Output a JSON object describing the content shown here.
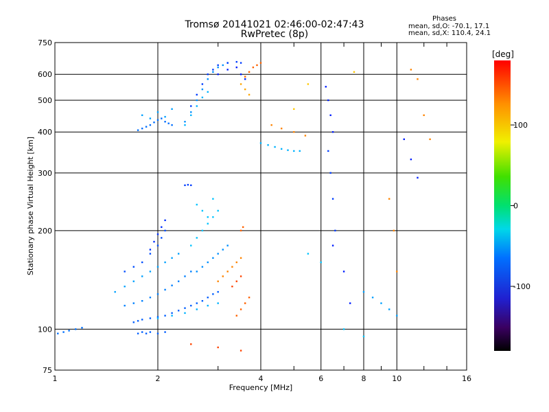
{
  "header": {
    "title_line1": "Tromsø 20141021 02:46:00-02:47:43",
    "title_line2": "RwPretec (8p)"
  },
  "stats": {
    "heading": "Phases",
    "o_line": "mean, sd,O: -70.1, 17.1",
    "x_line": "mean, sd,X: 110.4, 24.1"
  },
  "chart_data": {
    "type": "scatter",
    "title": "Tromsø 20141021 02:46:00-02:47:43",
    "subtitle": "RwPretec (8p)",
    "xlabel": "Frequency [MHz]",
    "ylabel": "Stationary phase Virtual Height [km]",
    "x_scale": "log",
    "y_scale": "log",
    "xlim": [
      1,
      16
    ],
    "ylim": [
      75,
      750
    ],
    "x_ticks": [
      1,
      2,
      4,
      6,
      8,
      10,
      16
    ],
    "x_tick_labels": [
      "1",
      "2",
      "4",
      "6",
      "8",
      "10",
      "16"
    ],
    "y_ticks": [
      75,
      100,
      200,
      300,
      400,
      500,
      600,
      750
    ],
    "y_tick_labels": [
      "75",
      "100",
      "200",
      "300",
      "400",
      "500",
      "600",
      "750"
    ],
    "grid": true,
    "colorbar": {
      "label": "[deg]",
      "range": [
        -180,
        180
      ],
      "ticks": [
        100,
        0,
        -100
      ],
      "tick_labels": [
        "100",
        "0",
        "-100"
      ]
    },
    "series": [
      {
        "x": [
          1.02,
          1.06,
          1.1,
          1.15,
          1.2
        ],
        "y": [
          97,
          98,
          99,
          100,
          101
        ],
        "phase": -95
      },
      {
        "x": [
          1.75,
          1.8,
          1.85,
          1.9,
          1.95,
          2.0,
          2.05,
          2.1,
          2.15,
          2.2
        ],
        "y": [
          405,
          410,
          415,
          420,
          428,
          435,
          440,
          430,
          425,
          420
        ],
        "phase": -95
      },
      {
        "x": [
          1.8,
          1.9,
          2.0,
          2.1,
          2.2
        ],
        "y": [
          450,
          440,
          460,
          445,
          470
        ],
        "phase": -80
      },
      {
        "x": [
          2.4,
          2.5,
          2.6,
          2.7,
          2.8,
          2.9,
          3.0,
          3.1,
          3.2
        ],
        "y": [
          430,
          460,
          500,
          540,
          580,
          610,
          630,
          640,
          650
        ],
        "phase": -85
      },
      {
        "x": [
          2.5,
          2.6,
          2.7,
          2.8,
          2.9,
          3.0,
          3.2,
          3.4,
          3.5
        ],
        "y": [
          480,
          520,
          560,
          600,
          620,
          640,
          650,
          655,
          650
        ],
        "phase": -110
      },
      {
        "x": [
          2.4,
          2.5,
          2.6,
          2.7,
          2.8
        ],
        "y": [
          420,
          450,
          480,
          510,
          530
        ],
        "phase": -75
      },
      {
        "x": [
          3.0,
          3.2,
          3.4,
          3.5,
          3.6
        ],
        "y": [
          600,
          620,
          630,
          600,
          580
        ],
        "phase": -120
      },
      {
        "x": [
          3.6,
          3.7,
          3.8,
          3.9,
          4.0
        ],
        "y": [
          590,
          610,
          630,
          640,
          650
        ],
        "phase": 150
      },
      {
        "x": [
          3.5,
          3.6,
          3.7
        ],
        "y": [
          560,
          540,
          520
        ],
        "phase": 130
      },
      {
        "x": [
          4.0,
          4.2,
          4.4,
          4.6,
          4.8,
          5.0,
          5.2
        ],
        "y": [
          370,
          365,
          360,
          355,
          352,
          350,
          350
        ],
        "phase": -75
      },
      {
        "x": [
          4.3,
          4.6,
          5.0,
          5.4
        ],
        "y": [
          420,
          410,
          400,
          390
        ],
        "phase": 140
      },
      {
        "x": [
          1.7,
          1.75,
          1.8,
          1.9,
          2.0,
          2.1,
          2.2,
          2.3,
          2.4,
          2.5,
          2.6,
          2.7,
          2.8,
          2.9,
          3.0
        ],
        "y": [
          105,
          106,
          107,
          108,
          109,
          110,
          112,
          114,
          116,
          118,
          120,
          122,
          125,
          128,
          130
        ],
        "phase": -100
      },
      {
        "x": [
          1.6,
          1.7,
          1.8,
          1.9,
          2.0,
          2.1,
          2.2,
          2.3,
          2.4,
          2.5
        ],
        "y": [
          118,
          120,
          122,
          125,
          128,
          132,
          136,
          140,
          145,
          150
        ],
        "phase": -90
      },
      {
        "x": [
          1.5,
          1.6,
          1.7,
          1.8,
          1.9,
          2.0,
          2.1,
          2.2,
          2.3
        ],
        "y": [
          130,
          135,
          140,
          145,
          150,
          155,
          160,
          165,
          170
        ],
        "phase": -80
      },
      {
        "x": [
          1.6,
          1.7,
          1.8,
          1.9,
          2.0,
          2.05,
          2.1
        ],
        "y": [
          150,
          155,
          160,
          170,
          180,
          190,
          200
        ],
        "phase": -105
      },
      {
        "x": [
          1.9,
          1.95,
          2.0,
          2.05,
          2.1
        ],
        "y": [
          175,
          185,
          195,
          205,
          215
        ],
        "phase": -115
      },
      {
        "x": [
          2.5,
          2.6,
          2.7,
          2.8,
          2.9,
          3.0
        ],
        "y": [
          180,
          190,
          200,
          210,
          220,
          230
        ],
        "phase": -70
      },
      {
        "x": [
          2.6,
          2.7,
          2.8,
          2.9,
          3.0,
          3.1,
          3.2
        ],
        "y": [
          150,
          155,
          160,
          165,
          170,
          175,
          180
        ],
        "phase": -85
      },
      {
        "x": [
          2.0,
          2.2,
          2.4,
          2.6,
          2.8,
          3.0
        ],
        "y": [
          108,
          110,
          112,
          115,
          118,
          120
        ],
        "phase": -75
      },
      {
        "x": [
          1.75,
          1.8,
          1.85,
          1.9,
          2.0,
          2.1
        ],
        "y": [
          97,
          98,
          97,
          98,
          97,
          98
        ],
        "phase": -100
      },
      {
        "x": [
          2.4,
          2.45,
          2.5
        ],
        "y": [
          275,
          276,
          275
        ],
        "phase": -110
      },
      {
        "x": [
          2.6,
          2.7,
          2.8,
          2.9
        ],
        "y": [
          240,
          230,
          220,
          250
        ],
        "phase": -70
      },
      {
        "x": [
          3.0,
          3.1,
          3.2,
          3.3,
          3.4,
          3.5
        ],
        "y": [
          140,
          145,
          150,
          155,
          160,
          165
        ],
        "phase": 140
      },
      {
        "x": [
          3.4,
          3.5,
          3.6,
          3.7
        ],
        "y": [
          110,
          115,
          120,
          125
        ],
        "phase": 150
      },
      {
        "x": [
          3.3,
          3.4,
          3.5
        ],
        "y": [
          135,
          140,
          145
        ],
        "phase": 160
      },
      {
        "x": [
          3.5,
          3.55
        ],
        "y": [
          200,
          205
        ],
        "phase": 150
      },
      {
        "x": [
          2.5,
          3.0,
          3.5
        ],
        "y": [
          90,
          88,
          86
        ],
        "phase": 160
      },
      {
        "x": [
          6.2,
          6.3,
          6.4,
          6.5
        ],
        "y": [
          550,
          500,
          450,
          400
        ],
        "phase": -120
      },
      {
        "x": [
          6.3,
          6.4,
          6.5,
          6.6
        ],
        "y": [
          350,
          300,
          250,
          200
        ],
        "phase": -110
      },
      {
        "x": [
          6.5,
          7.0,
          7.3
        ],
        "y": [
          180,
          150,
          120
        ],
        "phase": -120
      },
      {
        "x": [
          9.5,
          9.8,
          10.0
        ],
        "y": [
          250,
          200,
          150
        ],
        "phase": 140
      },
      {
        "x": [
          11.0,
          11.5,
          12.0,
          12.5
        ],
        "y": [
          620,
          580,
          450,
          380
        ],
        "phase": 140
      },
      {
        "x": [
          10.5,
          11.0,
          11.5
        ],
        "y": [
          380,
          330,
          290
        ],
        "phase": -120
      },
      {
        "x": [
          8.0,
          8.5,
          9.0,
          9.5,
          10.0
        ],
        "y": [
          130,
          125,
          120,
          115,
          110
        ],
        "phase": -80
      },
      {
        "x": [
          5.5,
          6.0,
          7.0,
          8.0
        ],
        "y": [
          170,
          160,
          100,
          95
        ],
        "phase": -70
      },
      {
        "x": [
          5.0,
          5.5,
          7.5
        ],
        "y": [
          470,
          560,
          610
        ],
        "phase": 120
      }
    ]
  }
}
